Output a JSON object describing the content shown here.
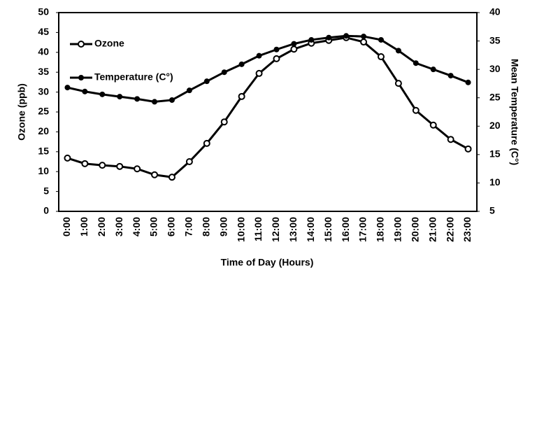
{
  "chart_data": {
    "type": "line",
    "x_label": "Time of Day (Hours)",
    "y_label": "Ozone (ppb)",
    "y2_label": "Mean Temperature (C°)",
    "categories": [
      "0:00",
      "1:00",
      "2:00",
      "3:00",
      "4:00",
      "5:00",
      "6:00",
      "7:00",
      "8:00",
      "9:00",
      "10:00",
      "11:00",
      "12:00",
      "13:00",
      "14:00",
      "15:00",
      "16:00",
      "17:00",
      "18:00",
      "19:00",
      "20:00",
      "21:00",
      "22:00",
      "23:00"
    ],
    "series": [
      {
        "name": "Ozone",
        "color": "#000000",
        "marker": "open-circle",
        "values": [
          13.4,
          12.0,
          11.6,
          11.3,
          10.7,
          9.2,
          8.6,
          12.5,
          17.1,
          22.5,
          28.9,
          34.7,
          38.4,
          40.8,
          42.3,
          43.0,
          43.7,
          42.6,
          38.9,
          32.2,
          25.4,
          21.7,
          18.1,
          15.7
        ]
      },
      {
        "name": "Temperature (C°)",
        "color": "#000000",
        "marker": "filled-circle",
        "axis": "y2",
        "values": [
          26.8,
          26.1,
          25.6,
          25.2,
          24.8,
          24.3,
          24.6,
          26.3,
          27.9,
          29.5,
          30.9,
          32.4,
          33.5,
          34.5,
          35.2,
          35.6,
          35.9,
          35.8,
          35.2,
          33.3,
          31.1,
          30.0,
          28.9,
          27.7
        ]
      }
    ],
    "ylim": [
      0,
      50
    ],
    "yticks": [
      0,
      5,
      10,
      15,
      20,
      25,
      30,
      35,
      40,
      45,
      50
    ],
    "y2lim": [
      5,
      40
    ],
    "y2ticks": [
      5,
      10,
      15,
      20,
      25,
      30,
      35,
      40
    ],
    "legend": "upper-left",
    "grid": false
  }
}
